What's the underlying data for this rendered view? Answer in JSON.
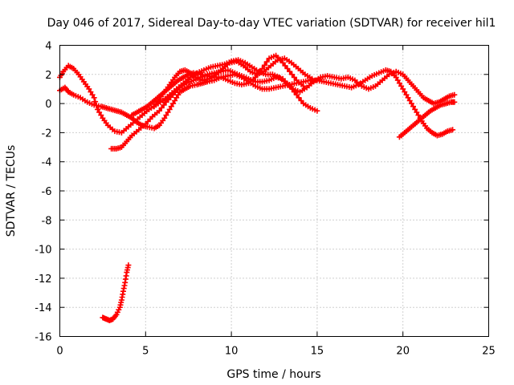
{
  "chart_data": {
    "type": "scatter",
    "title": "Day 046 of 2017, Sidereal Day-to-day VTEC variation (SDTVAR) for receiver hil1",
    "xlabel": "GPS time / hours",
    "ylabel": "SDTVAR / TECUs",
    "xlim": [
      0,
      25
    ],
    "ylim": [
      -16,
      4
    ],
    "xticks": [
      0,
      5,
      10,
      15,
      20,
      25
    ],
    "yticks": [
      -16,
      -14,
      -12,
      -10,
      -8,
      -6,
      -4,
      -2,
      0,
      2,
      4
    ],
    "grid": true,
    "marker": "plus",
    "color": "#ff0000",
    "series": [
      {
        "name": "track-1",
        "x": [
          0.0,
          0.3,
          0.5,
          0.8,
          1.2,
          1.6,
          2.0,
          2.4,
          2.7,
          3.0,
          3.3,
          3.6,
          3.9,
          4.2,
          4.5,
          4.8,
          5.1,
          5.5,
          5.8,
          6.1,
          6.4,
          6.7,
          7.0,
          7.3,
          7.6,
          8.0,
          8.3,
          8.6,
          9.0,
          9.4,
          9.8,
          10.2,
          10.6,
          11.0,
          11.4,
          11.8,
          12.2,
          12.6,
          13.0,
          13.4,
          13.8,
          14.2,
          14.6,
          15.0,
          15.4,
          15.8,
          16.2,
          16.6,
          17.0,
          17.4,
          17.8,
          18.2,
          18.6,
          19.0,
          19.3,
          19.6,
          19.9,
          20.2,
          20.5,
          20.8,
          21.1,
          21.4,
          21.7,
          22.0,
          22.3,
          22.6,
          22.9
        ],
        "y": [
          0.9,
          1.1,
          0.8,
          0.6,
          0.4,
          0.1,
          -0.1,
          -0.2,
          -0.3,
          -0.4,
          -0.5,
          -0.6,
          -0.8,
          -1.0,
          -1.3,
          -1.5,
          -1.6,
          -1.7,
          -1.5,
          -1.0,
          -0.4,
          0.2,
          0.8,
          1.0,
          1.2,
          1.3,
          1.4,
          1.5,
          1.6,
          1.8,
          1.9,
          2.0,
          1.8,
          1.5,
          1.2,
          1.0,
          1.0,
          1.1,
          1.2,
          1.3,
          1.4,
          1.5,
          1.6,
          1.6,
          1.5,
          1.4,
          1.3,
          1.2,
          1.1,
          1.3,
          1.6,
          1.9,
          2.1,
          2.3,
          2.2,
          1.8,
          1.2,
          0.6,
          0.0,
          -0.6,
          -1.2,
          -1.7,
          -2.0,
          -2.2,
          -2.1,
          -1.9,
          -1.8
        ]
      },
      {
        "name": "track-2",
        "x": [
          0.0,
          0.2,
          0.5,
          0.8,
          1.1,
          1.4,
          1.7,
          2.0,
          2.2,
          2.5,
          2.8,
          3.2,
          3.6,
          4.0,
          4.4,
          4.8,
          5.2,
          5.6,
          6.0,
          6.4,
          6.8,
          7.2,
          7.6,
          8.0,
          8.4,
          8.8,
          9.2,
          9.6,
          10.0,
          10.4,
          10.8,
          11.2,
          11.6,
          12.0,
          12.4,
          12.8,
          13.2,
          13.6,
          14.0,
          14.4,
          14.8,
          15.2,
          15.6,
          16.0,
          16.4,
          16.8,
          17.2,
          17.6,
          18.0,
          18.4,
          18.8,
          19.2,
          19.6,
          20.0,
          20.3,
          20.6,
          20.9,
          21.2,
          21.5,
          21.8,
          22.1,
          22.4,
          22.7,
          23.0
        ],
        "y": [
          1.8,
          2.2,
          2.6,
          2.4,
          2.0,
          1.5,
          1.0,
          0.4,
          -0.4,
          -1.0,
          -1.5,
          -1.9,
          -2.0,
          -1.6,
          -1.2,
          -0.8,
          -0.4,
          -0.1,
          0.2,
          0.6,
          1.0,
          1.4,
          1.8,
          2.1,
          2.3,
          2.5,
          2.6,
          2.7,
          2.9,
          3.0,
          2.8,
          2.5,
          2.2,
          2.0,
          2.0,
          1.8,
          1.4,
          1.0,
          0.8,
          1.1,
          1.5,
          1.8,
          1.9,
          1.8,
          1.7,
          1.8,
          1.6,
          1.2,
          1.0,
          1.2,
          1.6,
          2.0,
          2.2,
          2.0,
          1.6,
          1.2,
          0.8,
          0.4,
          0.2,
          0.0,
          0.1,
          0.3,
          0.5,
          0.6
        ]
      },
      {
        "name": "track-3",
        "x": [
          3.0,
          3.3,
          3.6,
          3.9,
          4.2,
          4.6,
          5.0,
          5.4,
          5.8,
          6.2,
          6.6,
          7.0,
          7.4,
          7.8,
          8.2,
          8.6,
          9.0,
          9.4,
          9.8,
          10.2,
          10.6,
          11.0,
          11.4,
          11.8,
          12.2,
          12.6,
          13.0,
          13.4,
          13.8,
          14.2,
          14.6,
          15.0
        ],
        "y": [
          -3.1,
          -3.1,
          -3.0,
          -2.6,
          -2.2,
          -1.8,
          -1.4,
          -0.9,
          -0.5,
          0.1,
          0.6,
          1.1,
          1.4,
          1.6,
          1.8,
          2.0,
          2.1,
          2.2,
          2.3,
          2.1,
          1.9,
          1.7,
          1.5,
          1.5,
          1.6,
          1.8,
          1.7,
          1.2,
          0.6,
          0.0,
          -0.3,
          -0.5
        ]
      },
      {
        "name": "track-4",
        "x": [
          4.2,
          4.5,
          4.8,
          5.1,
          5.4,
          5.7,
          6.0,
          6.3,
          6.6,
          6.9,
          7.2,
          7.5,
          7.8,
          8.2,
          8.6,
          9.0,
          9.4,
          9.8,
          10.2,
          10.6,
          11.0,
          11.4,
          11.8,
          12.2,
          12.6,
          13.0,
          13.4,
          13.8,
          14.2
        ],
        "y": [
          -0.8,
          -0.6,
          -0.4,
          -0.2,
          0.1,
          0.4,
          0.7,
          1.0,
          1.3,
          1.6,
          1.8,
          2.0,
          2.1,
          2.0,
          1.9,
          1.8,
          1.8,
          1.6,
          1.4,
          1.3,
          1.4,
          1.8,
          2.4,
          3.1,
          3.3,
          2.8,
          2.2,
          1.6,
          1.2
        ]
      },
      {
        "name": "track-5",
        "x": [
          5.5,
          5.8,
          6.1,
          6.4,
          6.7,
          7.0,
          7.3,
          7.6,
          7.9,
          8.3,
          8.7,
          9.1,
          9.5,
          9.9,
          10.3,
          10.7,
          11.1,
          11.5,
          11.9,
          12.3,
          12.7,
          13.1,
          13.5,
          13.9,
          14.3,
          14.7
        ],
        "y": [
          -0.2,
          0.3,
          0.8,
          1.3,
          1.8,
          2.2,
          2.3,
          2.1,
          1.8,
          1.6,
          1.7,
          2.0,
          2.4,
          2.8,
          2.9,
          2.6,
          2.2,
          2.0,
          2.2,
          2.6,
          3.0,
          3.1,
          2.8,
          2.4,
          2.0,
          1.7
        ]
      },
      {
        "name": "track-6",
        "x": [
          19.8,
          20.1,
          20.4,
          20.7,
          21.0,
          21.3,
          21.6,
          21.9,
          22.2,
          22.5,
          22.8,
          23.0
        ],
        "y": [
          -2.3,
          -2.0,
          -1.7,
          -1.4,
          -1.1,
          -0.8,
          -0.5,
          -0.3,
          -0.1,
          0.0,
          0.1,
          0.1
        ]
      },
      {
        "name": "track-7",
        "x": [
          2.5,
          2.7,
          2.9,
          3.1,
          3.3,
          3.5,
          3.6,
          3.7,
          3.8,
          3.9,
          4.0
        ],
        "y": [
          -14.7,
          -14.8,
          -14.9,
          -14.8,
          -14.5,
          -14.0,
          -13.5,
          -12.9,
          -12.3,
          -11.6,
          -11.1
        ]
      }
    ]
  }
}
